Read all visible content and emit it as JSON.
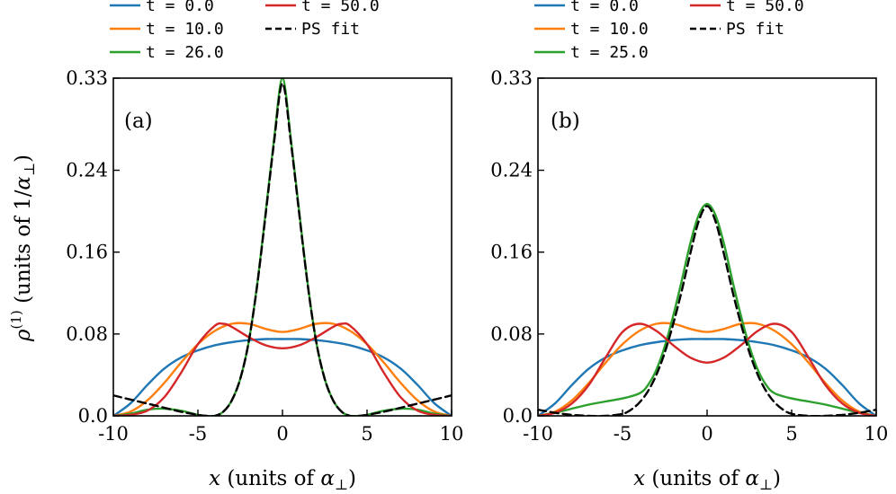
{
  "chart_data": [
    {
      "type": "line",
      "panel_label": "(a)",
      "xlabel": "x (units of α⊥)",
      "ylabel": "ρ(1) (units of 1/α⊥)",
      "xlim": [
        -10,
        10
      ],
      "ylim": [
        0,
        0.33
      ],
      "xticks": [
        -10,
        -5,
        0,
        5,
        10
      ],
      "xtick_labels": [
        "-10",
        "-5",
        "0",
        "5",
        "10"
      ],
      "yticks": [
        0,
        0.08,
        0.16,
        0.24,
        0.33
      ],
      "ytick_labels": [
        "0.0",
        "0.08",
        "0.16",
        "0.24",
        "0.33"
      ],
      "legend_location": "top",
      "series": [
        {
          "name": "t = 0.0",
          "color": "#1f77b4",
          "dashed": false,
          "x": [
            -10,
            -9,
            -8,
            -7,
            -6,
            -5,
            -4,
            -3,
            -2,
            -1,
            0,
            1,
            2,
            3,
            4,
            5,
            6,
            7,
            8,
            9,
            10
          ],
          "y": [
            0.0,
            0.012,
            0.03,
            0.046,
            0.057,
            0.064,
            0.069,
            0.072,
            0.074,
            0.075,
            0.075,
            0.075,
            0.074,
            0.072,
            0.069,
            0.064,
            0.057,
            0.046,
            0.03,
            0.012,
            0.0
          ]
        },
        {
          "name": "t = 10.0",
          "color": "#ff7f0e",
          "dashed": false,
          "x": [
            -10,
            -9,
            -8,
            -7,
            -6,
            -5,
            -4,
            -3,
            -2,
            -1,
            0,
            1,
            2,
            3,
            4,
            5,
            6,
            7,
            8,
            9,
            10
          ],
          "y": [
            0.0,
            0.004,
            0.015,
            0.032,
            0.052,
            0.07,
            0.083,
            0.09,
            0.09,
            0.085,
            0.082,
            0.085,
            0.09,
            0.09,
            0.083,
            0.07,
            0.052,
            0.032,
            0.015,
            0.004,
            0.0
          ]
        },
        {
          "name": "t = 26.0",
          "color": "#2ca02c",
          "dashed": false,
          "x": [
            -10,
            -9,
            -8,
            -7,
            -6,
            -5,
            -4.5,
            -4,
            -3.5,
            -3,
            -2.5,
            -2,
            -1.5,
            -1,
            -0.5,
            0,
            0.5,
            1,
            1.5,
            2,
            2.5,
            3,
            3.5,
            4,
            4.5,
            5,
            6,
            7,
            8,
            9,
            10
          ],
          "y": [
            0.0,
            0.002,
            0.006,
            0.007,
            0.005,
            0.001,
            0.0,
            0.0,
            0.004,
            0.015,
            0.036,
            0.072,
            0.128,
            0.198,
            0.27,
            0.33,
            0.27,
            0.198,
            0.128,
            0.072,
            0.036,
            0.015,
            0.004,
            0.0,
            0.0,
            0.001,
            0.005,
            0.007,
            0.006,
            0.002,
            0.0
          ]
        },
        {
          "name": "t = 50.0",
          "color": "#d62728",
          "dashed": false,
          "x": [
            -10,
            -9,
            -8,
            -7,
            -6,
            -5,
            -4,
            -3.5,
            -3,
            -2,
            -1,
            0,
            1,
            2,
            3,
            3.5,
            4,
            5,
            6,
            7,
            8,
            9,
            10
          ],
          "y": [
            0.0,
            0.001,
            0.005,
            0.018,
            0.042,
            0.07,
            0.088,
            0.09,
            0.087,
            0.077,
            0.069,
            0.066,
            0.069,
            0.077,
            0.087,
            0.09,
            0.088,
            0.07,
            0.042,
            0.018,
            0.005,
            0.001,
            0.0
          ]
        },
        {
          "name": "PS fit",
          "color": "#000000",
          "dashed": true,
          "x": [
            -10,
            -9,
            -8,
            -7,
            -6,
            -5,
            -4.5,
            -4,
            -3.5,
            -3,
            -2.5,
            -2,
            -1.5,
            -1,
            -0.5,
            0,
            0.5,
            1,
            1.5,
            2,
            2.5,
            3,
            3.5,
            4,
            4.5,
            5,
            6,
            7,
            8,
            9,
            10
          ],
          "y": [
            0.02,
            0.016,
            0.012,
            0.008,
            0.004,
            0.001,
            0.0,
            0.0,
            0.004,
            0.015,
            0.036,
            0.072,
            0.127,
            0.196,
            0.267,
            0.325,
            0.267,
            0.196,
            0.127,
            0.072,
            0.036,
            0.015,
            0.004,
            0.0,
            0.0,
            0.001,
            0.004,
            0.008,
            0.012,
            0.016,
            0.02
          ]
        }
      ]
    },
    {
      "type": "line",
      "panel_label": "(b)",
      "xlabel": "x (units of α⊥)",
      "ylabel": "",
      "xlim": [
        -10,
        10
      ],
      "ylim": [
        0,
        0.33
      ],
      "xticks": [
        -10,
        -5,
        0,
        5,
        10
      ],
      "xtick_labels": [
        "-10",
        "-5",
        "0",
        "5",
        "10"
      ],
      "yticks": [
        0,
        0.08,
        0.16,
        0.24,
        0.33
      ],
      "ytick_labels": [
        "0.0",
        "0.08",
        "0.16",
        "0.24",
        "0.33"
      ],
      "legend_location": "top",
      "series": [
        {
          "name": "t = 0.0",
          "color": "#1f77b4",
          "dashed": false,
          "x": [
            -10,
            -9,
            -8,
            -7,
            -6,
            -5,
            -4,
            -3,
            -2,
            -1,
            0,
            1,
            2,
            3,
            4,
            5,
            6,
            7,
            8,
            9,
            10
          ],
          "y": [
            0.0,
            0.012,
            0.03,
            0.046,
            0.057,
            0.064,
            0.069,
            0.072,
            0.074,
            0.075,
            0.075,
            0.075,
            0.074,
            0.072,
            0.069,
            0.064,
            0.057,
            0.046,
            0.03,
            0.012,
            0.0
          ]
        },
        {
          "name": "t = 10.0",
          "color": "#ff7f0e",
          "dashed": false,
          "x": [
            -10,
            -9,
            -8,
            -7,
            -6,
            -5,
            -4,
            -3,
            -2,
            -1,
            0,
            1,
            2,
            3,
            4,
            5,
            6,
            7,
            8,
            9,
            10
          ],
          "y": [
            0.0,
            0.004,
            0.015,
            0.032,
            0.052,
            0.07,
            0.083,
            0.09,
            0.09,
            0.085,
            0.082,
            0.085,
            0.09,
            0.09,
            0.083,
            0.07,
            0.052,
            0.032,
            0.015,
            0.004,
            0.0
          ]
        },
        {
          "name": "t = 25.0",
          "color": "#2ca02c",
          "dashed": false,
          "x": [
            -10,
            -9,
            -8,
            -7,
            -6,
            -5,
            -4,
            -3.5,
            -3,
            -2.5,
            -2,
            -1.5,
            -1,
            -0.5,
            0,
            0.5,
            1,
            1.5,
            2,
            2.5,
            3,
            3.5,
            4,
            5,
            6,
            7,
            8,
            9,
            10
          ],
          "y": [
            0.0,
            0.003,
            0.007,
            0.011,
            0.014,
            0.017,
            0.022,
            0.03,
            0.045,
            0.068,
            0.098,
            0.132,
            0.168,
            0.196,
            0.207,
            0.196,
            0.168,
            0.132,
            0.098,
            0.068,
            0.045,
            0.03,
            0.022,
            0.017,
            0.014,
            0.011,
            0.007,
            0.003,
            0.0
          ]
        },
        {
          "name": "t = 50.0",
          "color": "#d62728",
          "dashed": false,
          "x": [
            -10,
            -9,
            -8,
            -7,
            -6,
            -5,
            -4,
            -3,
            -2,
            -1,
            0,
            1,
            2,
            3,
            4,
            5,
            6,
            7,
            8,
            9,
            10
          ],
          "y": [
            0.0,
            0.003,
            0.012,
            0.03,
            0.057,
            0.082,
            0.09,
            0.083,
            0.069,
            0.057,
            0.052,
            0.057,
            0.069,
            0.083,
            0.09,
            0.082,
            0.057,
            0.03,
            0.012,
            0.003,
            0.0
          ]
        },
        {
          "name": "PS fit",
          "color": "#000000",
          "dashed": true,
          "x": [
            -10,
            -9,
            -8,
            -7,
            -6,
            -5,
            -4.5,
            -4,
            -3.5,
            -3,
            -2.5,
            -2,
            -1.5,
            -1,
            -0.5,
            0,
            0.5,
            1,
            1.5,
            2,
            2.5,
            3,
            3.5,
            4,
            4.5,
            5,
            6,
            7,
            8,
            9,
            10
          ],
          "y": [
            0.006,
            0.003,
            0.001,
            0.0,
            0.0,
            0.002,
            0.006,
            0.013,
            0.024,
            0.04,
            0.062,
            0.09,
            0.122,
            0.158,
            0.19,
            0.205,
            0.19,
            0.158,
            0.122,
            0.09,
            0.062,
            0.04,
            0.024,
            0.013,
            0.006,
            0.002,
            0.0,
            0.0,
            0.001,
            0.003,
            0.006
          ]
        }
      ]
    }
  ]
}
